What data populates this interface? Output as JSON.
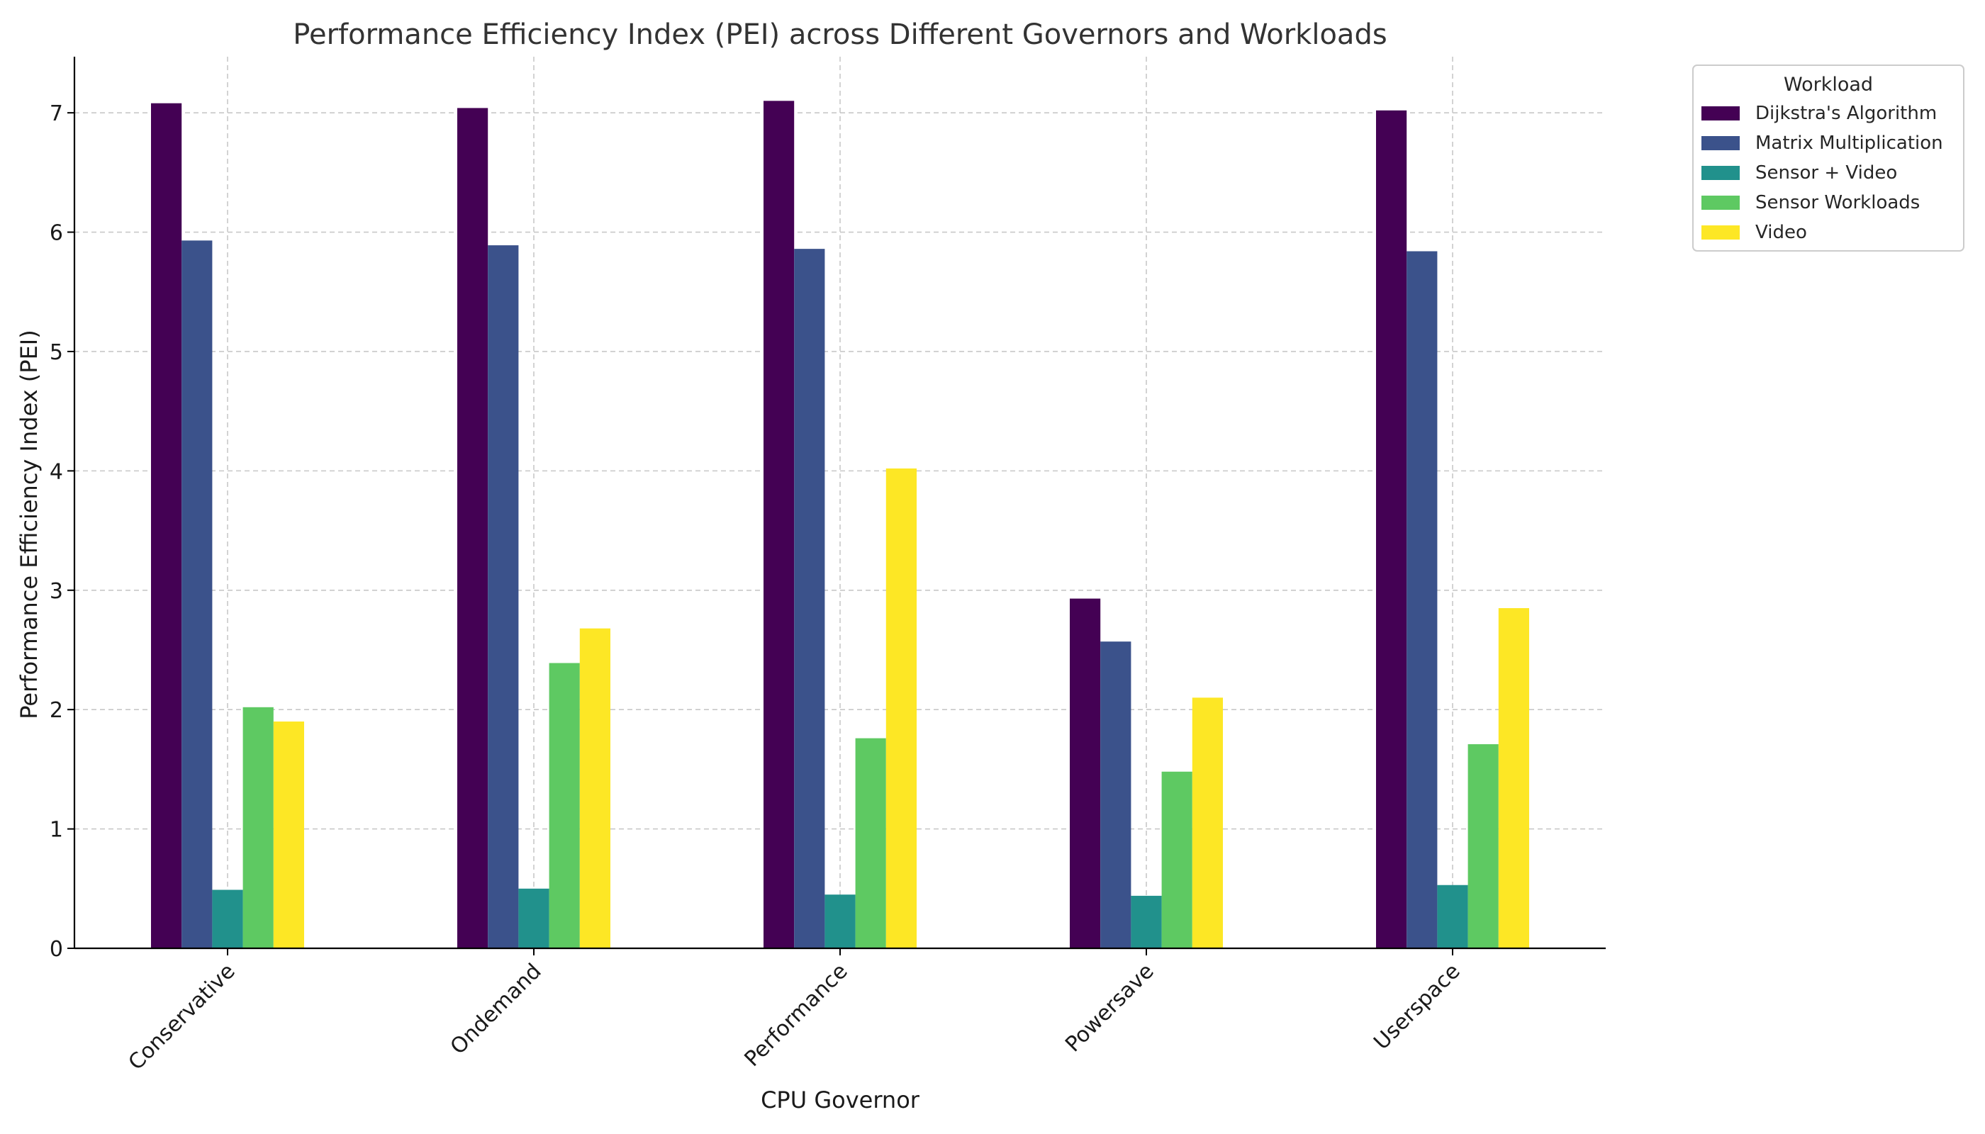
{
  "chart_data": {
    "type": "bar",
    "title": "Performance Efficiency Index (PEI) across Different Governors and Workloads",
    "xlabel": "CPU Governor",
    "ylabel": "Performance Efficiency Index (PEI)",
    "categories": [
      "Conservative",
      "Ondemand",
      "Performance",
      "Powersave",
      "Userspace"
    ],
    "ylim": [
      0,
      7.47
    ],
    "yticks": [
      0,
      1,
      2,
      3,
      4,
      5,
      6,
      7
    ],
    "grid": true,
    "legend": {
      "title": "Workload",
      "placement": "outside-top-right"
    },
    "series": [
      {
        "name": "Dijkstra's Algorithm",
        "color": "#440154",
        "values": [
          7.08,
          7.04,
          7.1,
          2.93,
          7.02
        ]
      },
      {
        "name": "Matrix Multiplication",
        "color": "#3b528b",
        "values": [
          5.93,
          5.89,
          5.86,
          2.57,
          5.84
        ]
      },
      {
        "name": "Sensor + Video",
        "color": "#21918c",
        "values": [
          0.49,
          0.5,
          0.45,
          0.44,
          0.53
        ]
      },
      {
        "name": "Sensor Workloads",
        "color": "#5ec962",
        "values": [
          2.02,
          2.39,
          1.76,
          1.48,
          1.71
        ]
      },
      {
        "name": "Video",
        "color": "#fde725",
        "values": [
          1.9,
          2.68,
          4.02,
          2.1,
          2.85
        ]
      }
    ]
  }
}
